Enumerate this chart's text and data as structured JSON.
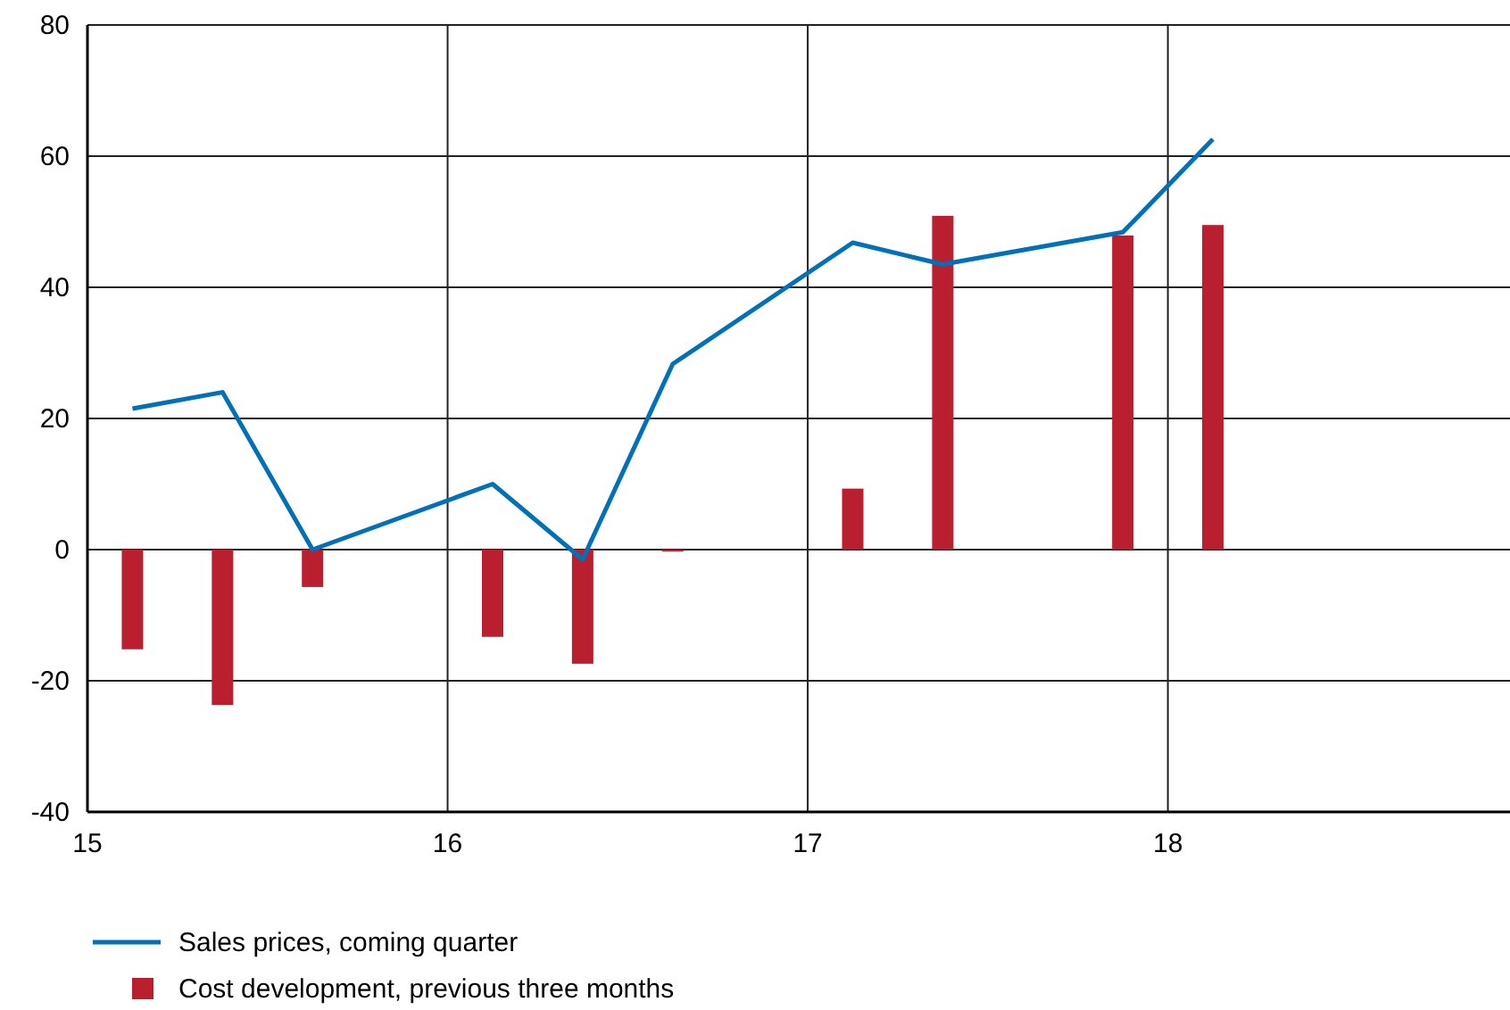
{
  "chart_data": {
    "type": "bar",
    "xlim": [
      15,
      18.95
    ],
    "xticks": [
      15,
      16,
      17,
      18
    ],
    "ylim": [
      -40,
      80
    ],
    "yticks": [
      -40,
      -20,
      0,
      20,
      40,
      60,
      80
    ],
    "grid": true,
    "legend": "bottom left",
    "series": [
      {
        "name": "Sales prices, coming quarter",
        "type": "line",
        "color": "#0070b8",
        "x": [
          15.125,
          15.375,
          15.625,
          16.125,
          16.375,
          16.625,
          17.125,
          17.375,
          17.875,
          18.125
        ],
        "values": [
          21.5,
          24,
          0,
          10,
          -1.5,
          28.3,
          46.8,
          43.5,
          48.4,
          62.6
        ]
      },
      {
        "name": "Cost development, previous three months",
        "color": "#b91f2e",
        "x": [
          15.125,
          15.375,
          15.625,
          16.125,
          16.375,
          16.625,
          17.125,
          17.375,
          17.875,
          18.125
        ],
        "values": [
          -15.2,
          -23.7,
          -5.7,
          -13.3,
          -17.4,
          -0.3,
          9.3,
          50.9,
          47.9,
          49.5
        ]
      }
    ]
  }
}
